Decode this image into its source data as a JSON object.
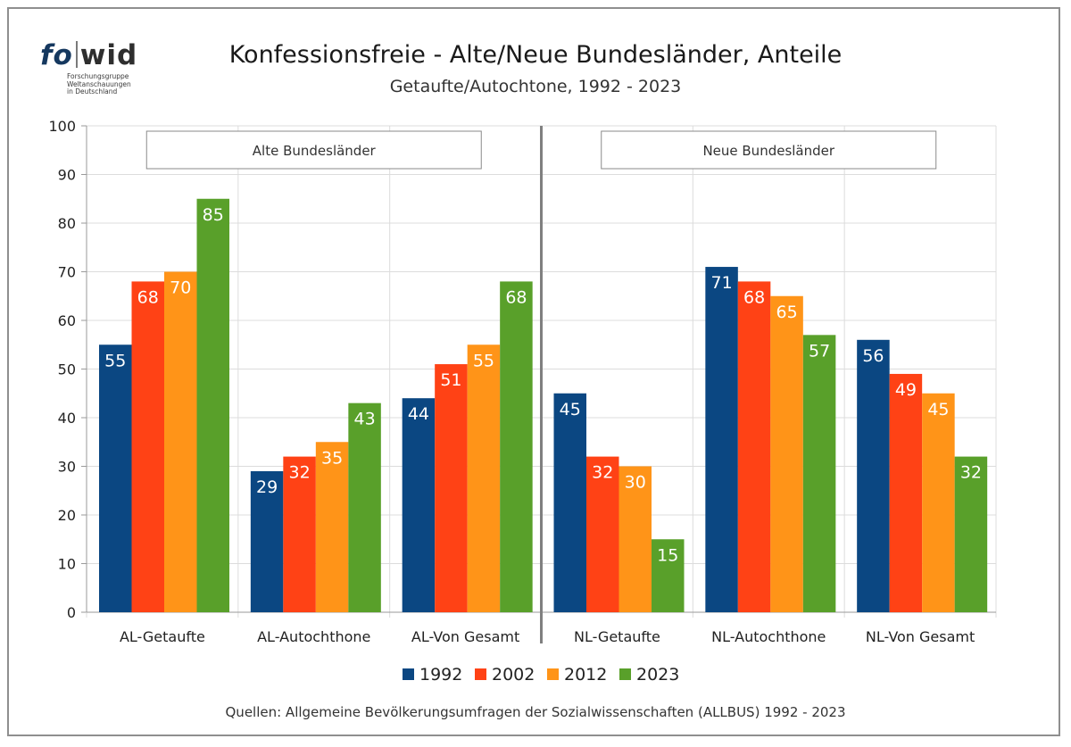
{
  "logo": {
    "word_a": "fo",
    "word_b": "wid",
    "sub": [
      "Forschungsgruppe",
      "Weltanschauungen",
      "in Deutschland"
    ]
  },
  "title": "Konfessionsfreie - Alte/Neue Bundesländer, Anteile",
  "subtitle": "Getaufte/Autochtone, 1992 - 2023",
  "source": "Quellen: Allgemeine Bevölkerungsumfragen der Sozialwissenschaften (ALLBUS) 1992 - 2023",
  "colors": {
    "1992": "#0b4782",
    "2002": "#ff4215",
    "2012": "#ff9418",
    "2023": "#59a02a"
  },
  "chart_data": {
    "type": "bar",
    "title": "Konfessionsfreie - Alte/Neue Bundesländer, Anteile",
    "subtitle": "Getaufte/Autochtone, 1992 - 2023",
    "categories": [
      "AL-Getaufte",
      "AL-Autochthone",
      "AL-Von Gesamt",
      "NL-Getaufte",
      "NL-Autochthone",
      "NL-Von Gesamt"
    ],
    "series": [
      {
        "name": "1992",
        "color": "#0b4782",
        "values": [
          55,
          29,
          44,
          45,
          71,
          56
        ]
      },
      {
        "name": "2002",
        "color": "#ff4215",
        "values": [
          68,
          32,
          51,
          32,
          68,
          49
        ]
      },
      {
        "name": "2012",
        "color": "#ff9418",
        "values": [
          70,
          35,
          55,
          30,
          65,
          45
        ]
      },
      {
        "name": "2023",
        "color": "#59a02a",
        "values": [
          85,
          43,
          68,
          15,
          57,
          32
        ]
      }
    ],
    "ylim": [
      0,
      100
    ],
    "yticks": [
      0,
      10,
      20,
      30,
      40,
      50,
      60,
      70,
      80,
      90,
      100
    ],
    "grid": true,
    "legend_position": "bottom",
    "panels": [
      "Alte Bundesländer",
      "Neue Bundesländer"
    ],
    "xlabel": "",
    "ylabel": ""
  }
}
